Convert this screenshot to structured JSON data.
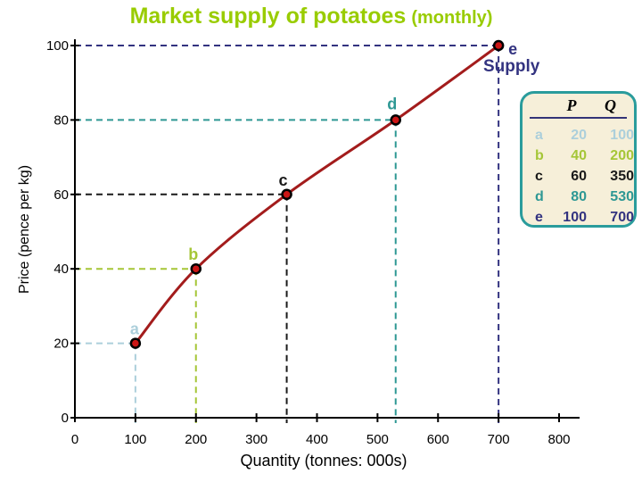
{
  "title": {
    "main": "Market supply of potatoes",
    "suffix": "(monthly)",
    "color": "#99CC00"
  },
  "axes": {
    "y_label": "Price (pence per kg)",
    "x_label": "Quantity (tonnes: 000s)"
  },
  "chart_data": {
    "type": "line",
    "title": "Market supply of potatoes (monthly)",
    "xlabel": "Quantity (tonnes: 000s)",
    "ylabel": "Price (pence per kg)",
    "xlim": [
      0,
      800
    ],
    "ylim": [
      0,
      100
    ],
    "x_ticks": [
      0,
      100,
      200,
      300,
      400,
      500,
      600,
      700,
      800
    ],
    "y_ticks": [
      0,
      20,
      40,
      60,
      80,
      100
    ],
    "grid": "off",
    "curve_color": "#A31C1C",
    "point_fill": "#CC1616",
    "point_stroke": "#000000",
    "series": [
      {
        "name": "Supply",
        "label_color": "#333380",
        "points": [
          {
            "label": "a",
            "P": 20,
            "Q": 100,
            "color": "#ACCFDB"
          },
          {
            "label": "b",
            "P": 40,
            "Q": 200,
            "color": "#A5C637"
          },
          {
            "label": "c",
            "P": 60,
            "Q": 350,
            "color": "#1A1A1A"
          },
          {
            "label": "d",
            "P": 80,
            "Q": 530,
            "color": "#2E9894"
          },
          {
            "label": "e",
            "P": 100,
            "Q": 700,
            "color": "#333380"
          }
        ]
      }
    ]
  },
  "table": {
    "border_color": "#2A9C9C",
    "background": "#F6EFD9",
    "rule_color": "#333377",
    "headers": {
      "p": "P",
      "q": "Q"
    },
    "rows": [
      {
        "label": "a",
        "p": "20",
        "q": "100",
        "color": "#ACCFDB"
      },
      {
        "label": "b",
        "p": "40",
        "q": "200",
        "color": "#A5C637"
      },
      {
        "label": "c",
        "p": "60",
        "q": "350",
        "color": "#1A1A1A"
      },
      {
        "label": "d",
        "p": "80",
        "q": "530",
        "color": "#2E9894"
      },
      {
        "label": "e",
        "p": "100",
        "q": "700",
        "color": "#333380"
      }
    ]
  }
}
